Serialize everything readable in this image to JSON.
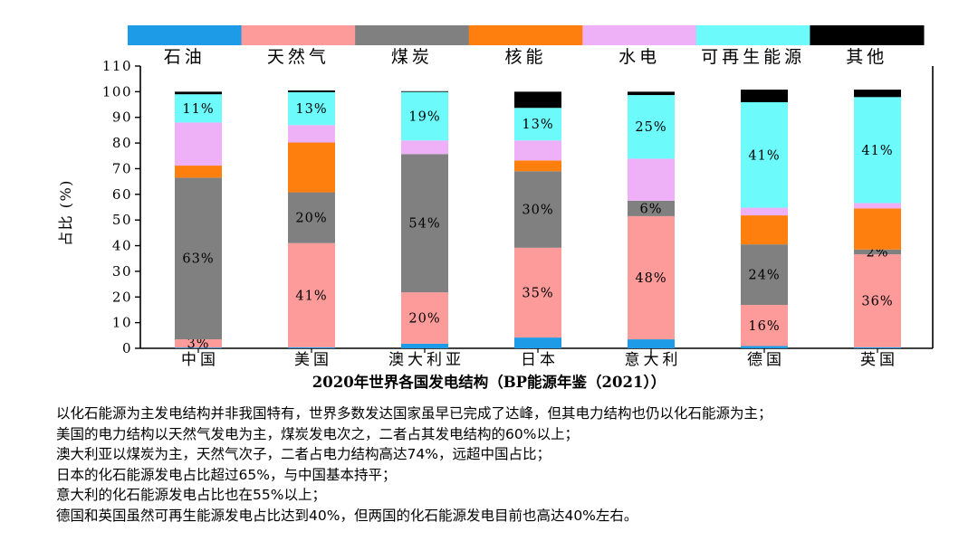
{
  "chart_data": {
    "type": "bar",
    "stacked": true,
    "title": "2020年世界各国发电结构（BP能源年鉴（2021））",
    "ylabel": "占比 (%)",
    "xlabel": "",
    "ylim": [
      0,
      110
    ],
    "yticks": [
      0,
      10,
      20,
      30,
      40,
      50,
      60,
      70,
      80,
      90,
      100,
      110
    ],
    "legend_position": "top",
    "categories": [
      "中国",
      "美国",
      "澳大利亚",
      "日本",
      "意大利",
      "德国",
      "英国"
    ],
    "series": [
      {
        "name": "石油",
        "color": "#1e9be6",
        "values": [
          0.3,
          0.4,
          1.8,
          4.2,
          3.5,
          0.9,
          0.4
        ],
        "labels": [
          "",
          "",
          "",
          "",
          "",
          "",
          ""
        ]
      },
      {
        "name": "天然气",
        "color": "#fd9a9a",
        "values": [
          3.2,
          40.6,
          20.0,
          35.0,
          48.0,
          16.0,
          36.2
        ],
        "labels": [
          "3%",
          "41%",
          "20%",
          "35%",
          "48%",
          "16%",
          "36%"
        ]
      },
      {
        "name": "煤炭",
        "color": "#808080",
        "values": [
          63.0,
          19.8,
          53.9,
          29.8,
          6.0,
          23.6,
          1.9
        ],
        "labels": [
          "63%",
          "20%",
          "54%",
          "30%",
          "6%",
          "24%",
          "2%"
        ]
      },
      {
        "name": "核能",
        "color": "#ff7f0e",
        "values": [
          4.7,
          19.4,
          0.0,
          4.2,
          0.0,
          11.3,
          16.0
        ],
        "labels": [
          "",
          "",
          "",
          "",
          "",
          "",
          ""
        ]
      },
      {
        "name": "水电",
        "color": "#eeb0f6",
        "values": [
          16.8,
          6.8,
          5.3,
          7.8,
          16.4,
          3.0,
          2.1
        ],
        "labels": [
          "",
          "",
          "",
          "",
          "",
          "",
          ""
        ]
      },
      {
        "name": "可再生能源",
        "color": "#6dfafa",
        "values": [
          11.0,
          12.8,
          18.9,
          12.7,
          24.8,
          41.1,
          41.3
        ],
        "labels": [
          "11%",
          "13%",
          "19%",
          "13%",
          "25%",
          "41%",
          "41%"
        ]
      },
      {
        "name": "其他",
        "color": "#000000",
        "values": [
          1.0,
          0.7,
          0.3,
          6.3,
          1.3,
          4.9,
          2.9
        ],
        "labels": [
          "",
          "",
          "",
          "",
          "",
          "",
          ""
        ]
      }
    ]
  },
  "notes": {
    "line1": "以化石能源为主发电结构并非我国特有，世界多数发达国家虽早已完成了达峰，但其电力结构也仍以化石能源为主；",
    "line2": "美国的电力结构以天然气发电为主，煤炭发电次之，二者占其发电结构的60%以上；",
    "line3": "澳大利亚以煤炭为主，天然气次子，二者占电力结构高达74%，远超中国占比；",
    "line4": "日本的化石能源发电占比超过65%，与中国基本持平；",
    "line5": "意大利的化石能源发电占比也在55%以上；",
    "line6": "德国和英国虽然可再生能源发电占比达到40%，但两国的化石能源发电目前也高达40%左右。"
  }
}
